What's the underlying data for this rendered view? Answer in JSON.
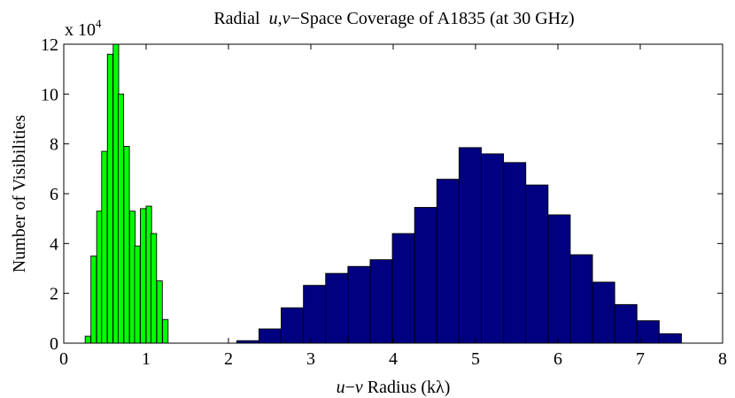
{
  "chart_data": {
    "type": "bar",
    "title": "Radial  u,v−Space Coverage of A1835 (at 30 GHz)",
    "title_parts": {
      "lead": "Radial  ",
      "uv": "u,v",
      "rest": "−Space Coverage of A1835 (at 30 GHz)"
    },
    "xlabel": "u−v Radius (kλ)",
    "xlabel_parts": {
      "u": "u",
      "minus": "−",
      "v": "v",
      "rest": " Radius (kλ)"
    },
    "ylabel": "Number of Visibilities",
    "y_multiplier": {
      "base": "x 10",
      "exponent": "4"
    },
    "xlim": [
      0,
      8
    ],
    "ylim": [
      0,
      12
    ],
    "x_ticks": [
      "0",
      "1",
      "2",
      "3",
      "4",
      "5",
      "6",
      "7",
      "8"
    ],
    "y_ticks": [
      "0",
      "2",
      "4",
      "6",
      "8",
      "10",
      "12"
    ],
    "grid": false,
    "series": [
      {
        "color": "#00ff00",
        "bin_width": 0.0667,
        "bins": [
          [
            0.26,
            0.28
          ],
          [
            0.33,
            3.5
          ],
          [
            0.4,
            5.3
          ],
          [
            0.46,
            7.7
          ],
          [
            0.53,
            11.6
          ],
          [
            0.6,
            12.0
          ],
          [
            0.66,
            10.0
          ],
          [
            0.73,
            7.9
          ],
          [
            0.8,
            5.3
          ],
          [
            0.86,
            3.9
          ],
          [
            0.93,
            5.4
          ],
          [
            1.0,
            5.5
          ],
          [
            1.06,
            4.4
          ],
          [
            1.13,
            2.5
          ],
          [
            1.2,
            0.95
          ]
        ]
      },
      {
        "color": "#000080",
        "bin_width": 0.27,
        "bins": [
          [
            2.1,
            0.1
          ],
          [
            2.37,
            0.57
          ],
          [
            2.64,
            1.42
          ],
          [
            2.91,
            2.32
          ],
          [
            3.18,
            2.8
          ],
          [
            3.45,
            3.08
          ],
          [
            3.72,
            3.35
          ],
          [
            3.99,
            4.4
          ],
          [
            4.26,
            5.45
          ],
          [
            4.53,
            6.58
          ],
          [
            4.8,
            7.85
          ],
          [
            5.07,
            7.6
          ],
          [
            5.34,
            7.25
          ],
          [
            5.61,
            6.35
          ],
          [
            5.88,
            5.15
          ],
          [
            6.15,
            3.55
          ],
          [
            6.42,
            2.45
          ],
          [
            6.69,
            1.55
          ],
          [
            6.96,
            0.9
          ],
          [
            7.23,
            0.38
          ]
        ]
      }
    ]
  }
}
